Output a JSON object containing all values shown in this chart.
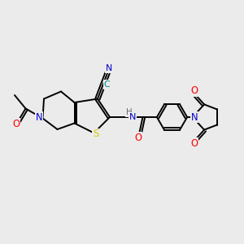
{
  "bg_color": "#ebebeb",
  "bond_color": "#000000",
  "lw": 1.4,
  "atom_colors": {
    "N": "#0000cc",
    "S": "#cccc00",
    "O": "#ff0000",
    "C_teal": "#008888"
  },
  "fs": 7.8,
  "xlim": [
    0,
    10
  ],
  "ylim": [
    0,
    10
  ],
  "figsize": [
    3.0,
    3.0
  ],
  "dpi": 100
}
